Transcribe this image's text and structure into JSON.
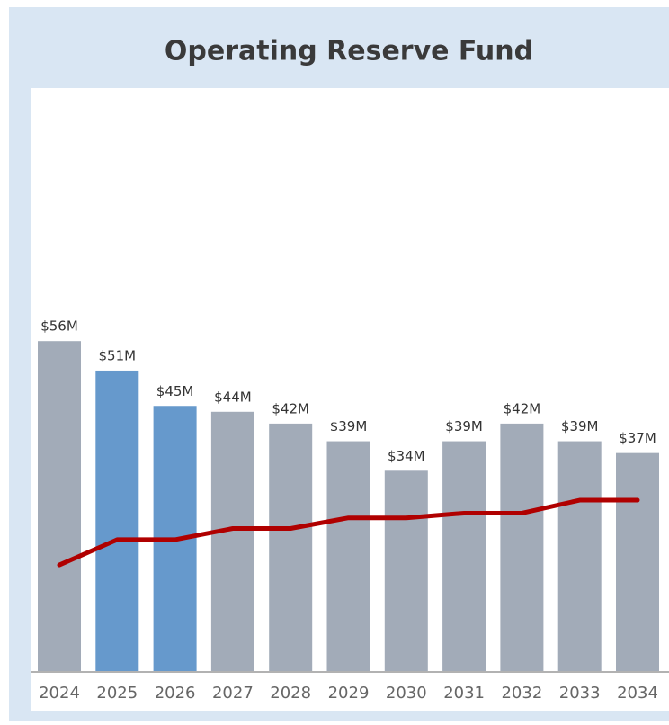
{
  "chart_data": {
    "type": "bar",
    "title": "Operating Reserve Fund",
    "categories": [
      "2024",
      "2025",
      "2026",
      "2027",
      "2028",
      "2029",
      "2030",
      "2031",
      "2032",
      "2033",
      "2034"
    ],
    "series": [
      {
        "type": "bar",
        "values": [
          56,
          51,
          45,
          44,
          42,
          39,
          34,
          39,
          42,
          39,
          37
        ],
        "value_labels": [
          "$56M",
          "$51M",
          "$45M",
          "$44M",
          "$42M",
          "$39M",
          "$34M",
          "$39M",
          "$42M",
          "$39M",
          "$37M"
        ],
        "colors": [
          "#a2abb8",
          "#6699cc",
          "#6699cc",
          "#a2abb8",
          "#a2abb8",
          "#a2abb8",
          "#a2abb8",
          "#a2abb8",
          "#a2abb8",
          "#a2abb8",
          "#a2abb8"
        ]
      },
      {
        "type": "line",
        "color": "#b00000",
        "values": [
          18,
          22.3,
          22.3,
          24.2,
          24.2,
          26,
          26,
          26.8,
          26.8,
          29,
          29
        ]
      }
    ]
  }
}
